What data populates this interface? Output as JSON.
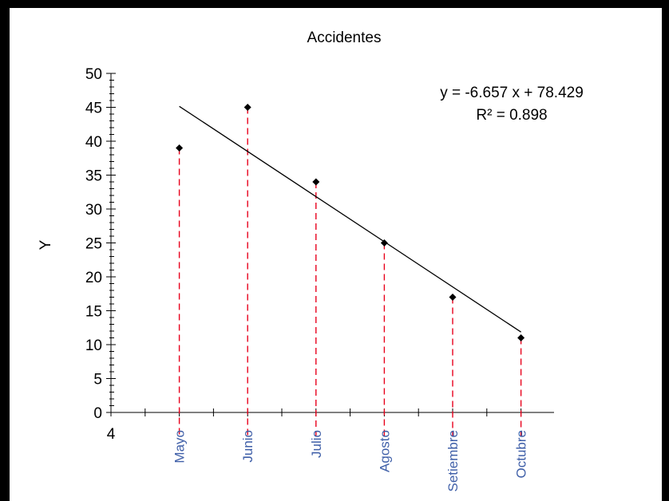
{
  "chart_data": {
    "type": "scatter",
    "title": "Accidentes",
    "xlabel": "",
    "ylabel": "Y",
    "ylim": [
      0,
      50
    ],
    "y_ticks": [
      "0",
      "5",
      "10",
      "15",
      "20",
      "25",
      "30",
      "35",
      "40",
      "45",
      "50"
    ],
    "x_start_label": "4",
    "categories": [
      "Mayo",
      "Junio",
      "Julio",
      "Agosto",
      "Setiembre",
      "Octubre"
    ],
    "values": [
      39,
      45,
      34,
      25,
      17,
      11
    ],
    "trendline": {
      "slope": -6.657,
      "intercept": 78.429,
      "equation": "y = -6.657  x + 78.429",
      "r2_label": "R² = 0.898"
    },
    "grid": false,
    "legend": "none"
  },
  "colors": {
    "background": "#000000",
    "plot": "#ffffff",
    "points": "#000000",
    "drop_lines": "#e8001c",
    "trendline": "#000000",
    "category_labels": "#3f5fa8"
  }
}
